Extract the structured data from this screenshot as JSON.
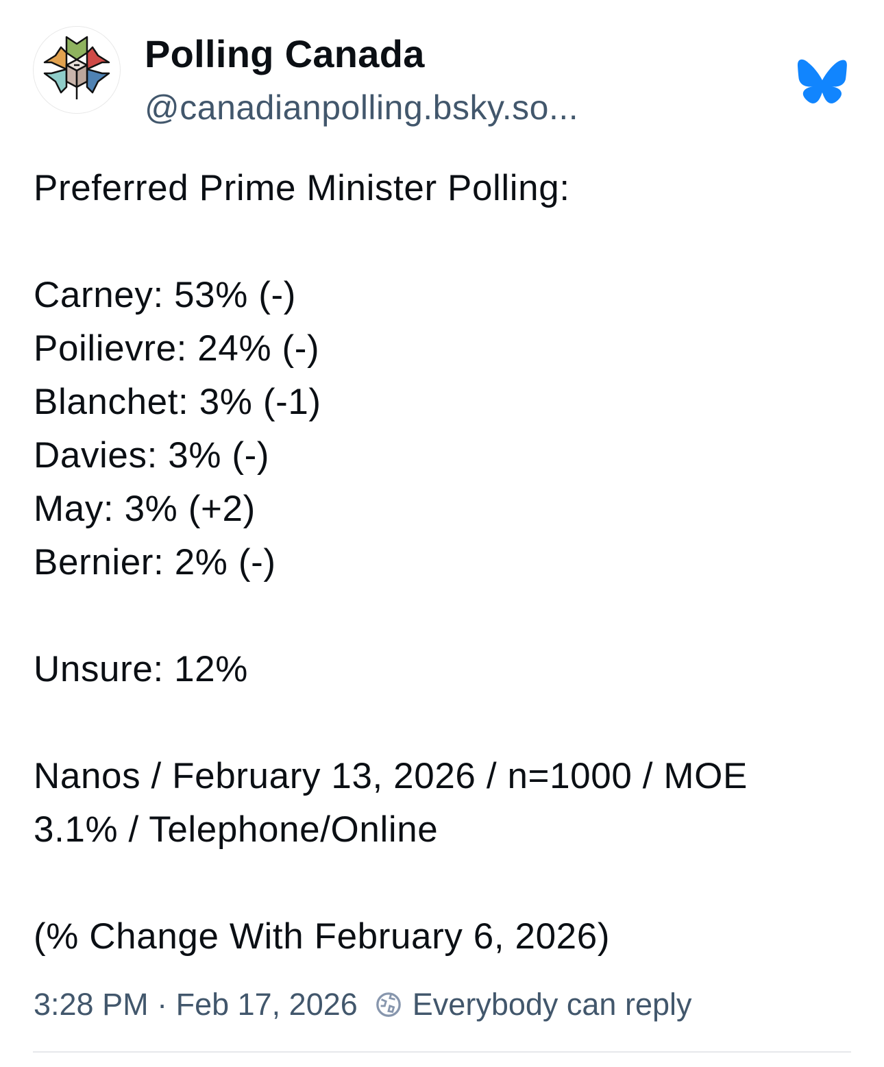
{
  "author": {
    "name": "Polling Canada",
    "handle": "@canadianpolling.bsky.so..."
  },
  "post": {
    "lines": [
      "Preferred Prime Minister Polling:",
      "",
      "Carney: 53% (-)",
      "Poilievre: 24% (-)",
      "Blanchet: 3% (-1)",
      "Davies: 3% (-)",
      "May: 3% (+2)",
      "Bernier: 2% (-)",
      "",
      "Unsure: 12%",
      "",
      "Nanos / February 13, 2026 / n=1000 / MOE",
      "3.1% / Telephone/Online",
      "",
      "(% Change With February 6, 2026)"
    ]
  },
  "footer": {
    "timestamp": "3:28 PM · Feb 17, 2026",
    "reply_setting": "Everybody can reply"
  },
  "colors": {
    "bluesky": "#1185fe",
    "muted": "#42576c"
  },
  "icons": {
    "app": "bluesky-butterfly-icon",
    "reply": "globe-icon"
  }
}
